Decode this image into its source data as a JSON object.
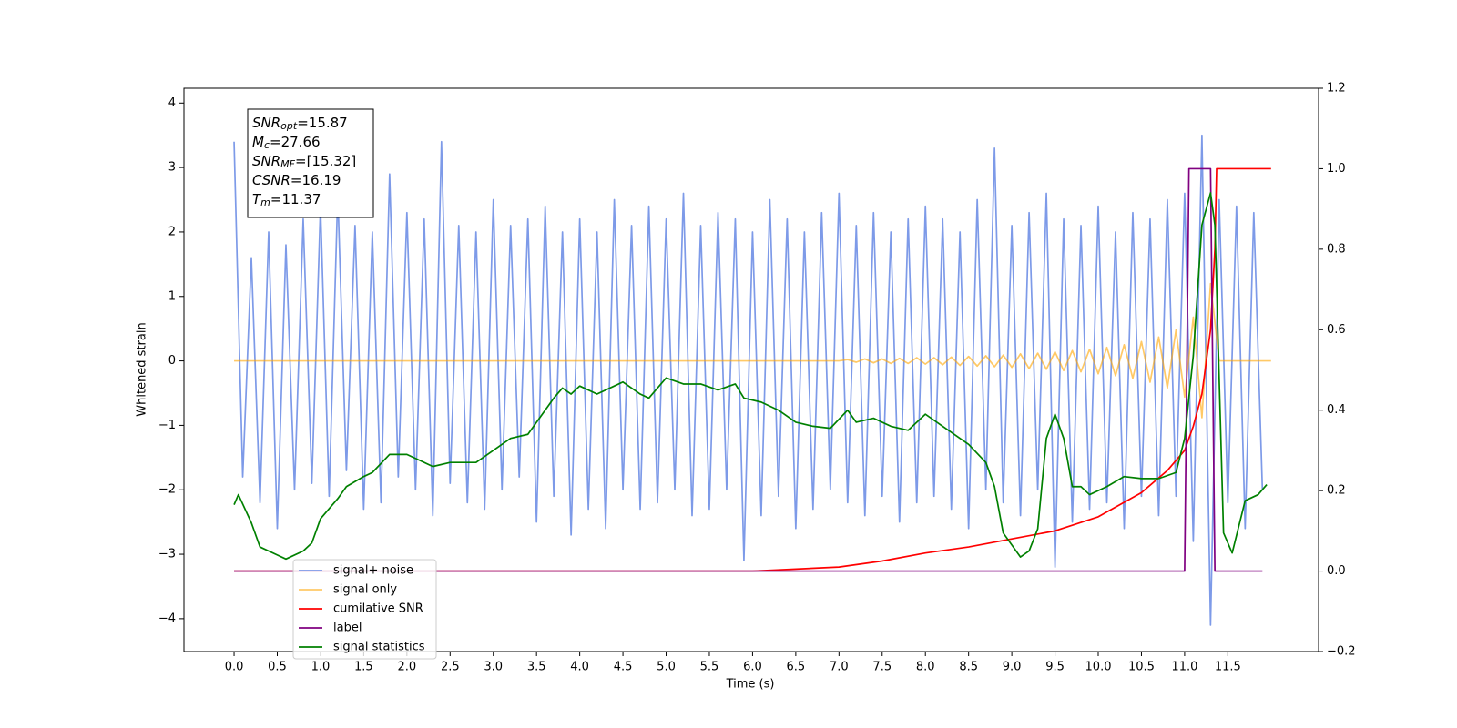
{
  "chart_data": {
    "type": "line",
    "xlabel": "Time (s)",
    "ylabel": "Whitened strain",
    "xlim": [
      -0.58,
      12.55
    ],
    "ylim": [
      -4.51,
      4.23
    ],
    "y2lim": [
      -0.2,
      1.2
    ],
    "xticks": [
      {
        "value": 0,
        "label": "0.0"
      },
      0.5,
      {
        "value": 1,
        "label": "1.0"
      },
      1.5,
      {
        "value": 2,
        "label": "2.0"
      },
      2.5,
      {
        "value": 3,
        "label": "3.0"
      },
      3.5,
      {
        "value": 4,
        "label": "4.0"
      },
      4.5,
      {
        "value": 5,
        "label": "5.0"
      },
      5.5,
      {
        "value": 6,
        "label": "6.0"
      },
      6.5,
      {
        "value": 7,
        "label": "7.0"
      },
      7.5,
      {
        "value": 8,
        "label": "8.0"
      },
      8.5,
      {
        "value": 9,
        "label": "9.0"
      },
      9.5,
      {
        "value": 10,
        "label": "10.0"
      },
      10.5,
      {
        "value": 11,
        "label": "11.0"
      },
      11.5
    ],
    "yticks": [
      {
        "value": -4,
        "label": "−4"
      },
      {
        "value": -3,
        "label": "−3"
      },
      {
        "value": -2,
        "label": "−2"
      },
      {
        "value": -1,
        "label": "−1"
      },
      0,
      1,
      2,
      3,
      4
    ],
    "y2ticks": [
      {
        "value": -0.2,
        "label": "−0.2"
      },
      {
        "value": 0,
        "label": "0.0"
      },
      0.2,
      0.4,
      0.6,
      0.8,
      {
        "value": 1,
        "label": "1.0"
      },
      1.2
    ],
    "legend": "lower left",
    "annotation": [
      {
        "symbol": "SNR",
        "subscript": "opt",
        "text": "=15.87"
      },
      {
        "symbol": "M",
        "subscript": "c",
        "text": "=27.66"
      },
      {
        "symbol": "SNR",
        "subscript": "MF",
        "text": "=[15.32]"
      },
      {
        "symbol": "CSNR",
        "text": "=16.19"
      },
      {
        "symbol": "T",
        "subscript": "m",
        "text": "=11.37"
      }
    ],
    "series": [
      {
        "name": "signal+ noise",
        "color": "#6f8fe6",
        "opacity": 0.9,
        "axis": "y",
        "x": [
          0,
          0.1,
          0.2,
          0.3,
          0.4,
          0.5,
          0.6,
          0.7,
          0.8,
          0.9,
          1,
          1.1,
          1.2,
          1.3,
          1.4,
          1.5,
          1.6,
          1.7,
          1.8,
          1.9,
          2,
          2.1,
          2.2,
          2.3,
          2.4,
          2.5,
          2.6,
          2.7,
          2.8,
          2.9,
          3,
          3.1,
          3.2,
          3.3,
          3.4,
          3.5,
          3.6,
          3.7,
          3.8,
          3.9,
          4,
          4.1,
          4.2,
          4.3,
          4.4,
          4.5,
          4.6,
          4.7,
          4.8,
          4.9,
          5,
          5.1,
          5.2,
          5.3,
          5.4,
          5.5,
          5.6,
          5.7,
          5.8,
          5.9,
          6,
          6.1,
          6.2,
          6.3,
          6.4,
          6.5,
          6.6,
          6.7,
          6.8,
          6.9,
          7,
          7.1,
          7.2,
          7.3,
          7.4,
          7.5,
          7.6,
          7.7,
          7.8,
          7.9,
          8,
          8.1,
          8.2,
          8.3,
          8.4,
          8.5,
          8.6,
          8.7,
          8.8,
          8.9,
          9,
          9.1,
          9.2,
          9.3,
          9.4,
          9.5,
          9.6,
          9.7,
          9.8,
          9.9,
          10,
          10.1,
          10.2,
          10.3,
          10.4,
          10.5,
          10.6,
          10.7,
          10.8,
          10.9,
          11,
          11.1,
          11.2,
          11.3,
          11.4,
          11.5,
          11.6,
          11.7,
          11.8,
          11.9
        ],
        "values": [
          3.4,
          -1.8,
          1.6,
          -2.2,
          2.0,
          -2.6,
          1.8,
          -2.0,
          2.2,
          -1.9,
          2.4,
          -2.1,
          2.6,
          -1.7,
          2.1,
          -2.3,
          2.0,
          -2.2,
          2.9,
          -1.8,
          2.3,
          -2.0,
          2.2,
          -2.4,
          3.4,
          -1.9,
          2.1,
          -2.2,
          2.0,
          -2.3,
          2.5,
          -2.0,
          2.1,
          -1.8,
          2.2,
          -2.5,
          2.4,
          -2.1,
          2.0,
          -2.7,
          2.2,
          -2.3,
          2.0,
          -2.6,
          2.5,
          -2.0,
          2.1,
          -2.3,
          2.4,
          -2.2,
          2.2,
          -2.0,
          2.6,
          -2.4,
          2.1,
          -2.3,
          2.3,
          -2.0,
          2.2,
          -3.1,
          2.0,
          -2.4,
          2.5,
          -2.1,
          2.2,
          -2.6,
          2.0,
          -2.3,
          2.3,
          -2.0,
          2.6,
          -2.2,
          2.1,
          -2.4,
          2.3,
          -2.1,
          2.0,
          -2.5,
          2.2,
          -2.2,
          2.4,
          -2.1,
          2.2,
          -2.3,
          2.0,
          -2.6,
          2.5,
          -2.0,
          3.3,
          -2.2,
          2.1,
          -2.4,
          2.3,
          -2.0,
          2.6,
          -3.2,
          2.2,
          -2.5,
          2.1,
          -2.3,
          2.4,
          -2.2,
          2.0,
          -2.6,
          2.3,
          -2.1,
          2.2,
          -2.4,
          2.5,
          -2.1,
          2.6,
          -2.8,
          3.5,
          -4.1,
          2.5,
          -2.2,
          2.4,
          -2.6,
          2.3,
          -2.0
        ]
      },
      {
        "name": "signal only",
        "color": "#ffa500",
        "opacity": 0.6,
        "axis": "y",
        "x": [
          0,
          7,
          7.1,
          7.2,
          7.3,
          7.4,
          7.5,
          7.6,
          7.7,
          7.8,
          7.9,
          8,
          8.1,
          8.2,
          8.3,
          8.4,
          8.5,
          8.6,
          8.7,
          8.8,
          8.9,
          9,
          9.1,
          9.2,
          9.3,
          9.4,
          9.5,
          9.6,
          9.7,
          9.8,
          9.9,
          10,
          10.1,
          10.2,
          10.3,
          10.4,
          10.5,
          10.6,
          10.7,
          10.8,
          10.9,
          11,
          11.1,
          11.2,
          11.3,
          11.4,
          12
        ],
        "values": [
          0,
          0,
          0.02,
          -0.02,
          0.03,
          -0.03,
          0.03,
          -0.04,
          0.04,
          -0.04,
          0.05,
          -0.05,
          0.05,
          -0.06,
          0.06,
          -0.07,
          0.07,
          -0.08,
          0.08,
          -0.09,
          0.09,
          -0.1,
          0.11,
          -0.12,
          0.12,
          -0.13,
          0.14,
          -0.15,
          0.16,
          -0.17,
          0.18,
          -0.2,
          0.21,
          -0.23,
          0.25,
          -0.27,
          0.3,
          -0.33,
          0.37,
          -0.42,
          0.48,
          -0.56,
          0.68,
          -0.88,
          1.2,
          0,
          0
        ]
      },
      {
        "name": "cumilative SNR",
        "color": "#ff0000",
        "opacity": 1,
        "axis": "y2",
        "x": [
          0,
          6,
          7,
          7.5,
          8,
          8.5,
          9,
          9.5,
          10,
          10.5,
          10.8,
          11,
          11.1,
          11.2,
          11.3,
          11.35,
          11.37,
          12
        ],
        "values": [
          0,
          0,
          0.01,
          0.025,
          0.045,
          0.06,
          0.08,
          0.1,
          0.135,
          0.195,
          0.25,
          0.3,
          0.36,
          0.44,
          0.6,
          0.8,
          1,
          1
        ]
      },
      {
        "name": "label",
        "color": "#800080",
        "opacity": 1,
        "axis": "y2",
        "x": [
          0,
          11,
          11.05,
          11.3,
          11.35,
          11.9
        ],
        "values": [
          0,
          0,
          1,
          1,
          0,
          0
        ]
      },
      {
        "name": "signal statistics",
        "color": "#008000",
        "opacity": 1,
        "axis": "y2",
        "x": [
          0,
          0.05,
          0.2,
          0.3,
          0.5,
          0.6,
          0.8,
          0.9,
          1,
          1.2,
          1.3,
          1.5,
          1.6,
          1.8,
          2,
          2.1,
          2.3,
          2.5,
          2.8,
          3,
          3.2,
          3.4,
          3.5,
          3.6,
          3.7,
          3.8,
          3.9,
          4,
          4.2,
          4.4,
          4.5,
          4.7,
          4.8,
          5,
          5.2,
          5.4,
          5.6,
          5.8,
          5.9,
          6.1,
          6.3,
          6.5,
          6.7,
          6.9,
          7.1,
          7.2,
          7.4,
          7.6,
          7.8,
          8,
          8.2,
          8.4,
          8.5,
          8.7,
          8.8,
          8.9,
          9.1,
          9.2,
          9.3,
          9.4,
          9.5,
          9.6,
          9.7,
          9.8,
          9.9,
          10.1,
          10.3,
          10.5,
          10.7,
          10.9,
          11,
          11.1,
          11.2,
          11.3,
          11.35,
          11.45,
          11.55,
          11.7,
          11.85,
          11.95
        ],
        "values": [
          0.165,
          0.19,
          0.12,
          0.06,
          0.04,
          0.03,
          0.05,
          0.07,
          0.13,
          0.18,
          0.21,
          0.235,
          0.245,
          0.29,
          0.29,
          0.28,
          0.26,
          0.27,
          0.27,
          0.3,
          0.33,
          0.34,
          0.37,
          0.4,
          0.43,
          0.455,
          0.44,
          0.46,
          0.44,
          0.46,
          0.47,
          0.44,
          0.43,
          0.48,
          0.465,
          0.465,
          0.45,
          0.465,
          0.43,
          0.42,
          0.4,
          0.37,
          0.36,
          0.355,
          0.4,
          0.37,
          0.38,
          0.36,
          0.35,
          0.39,
          0.36,
          0.33,
          0.315,
          0.27,
          0.21,
          0.095,
          0.035,
          0.05,
          0.105,
          0.33,
          0.39,
          0.33,
          0.21,
          0.21,
          0.19,
          0.21,
          0.235,
          0.23,
          0.23,
          0.245,
          0.33,
          0.535,
          0.86,
          0.94,
          0.86,
          0.095,
          0.045,
          0.175,
          0.19,
          0.215
        ]
      }
    ]
  }
}
